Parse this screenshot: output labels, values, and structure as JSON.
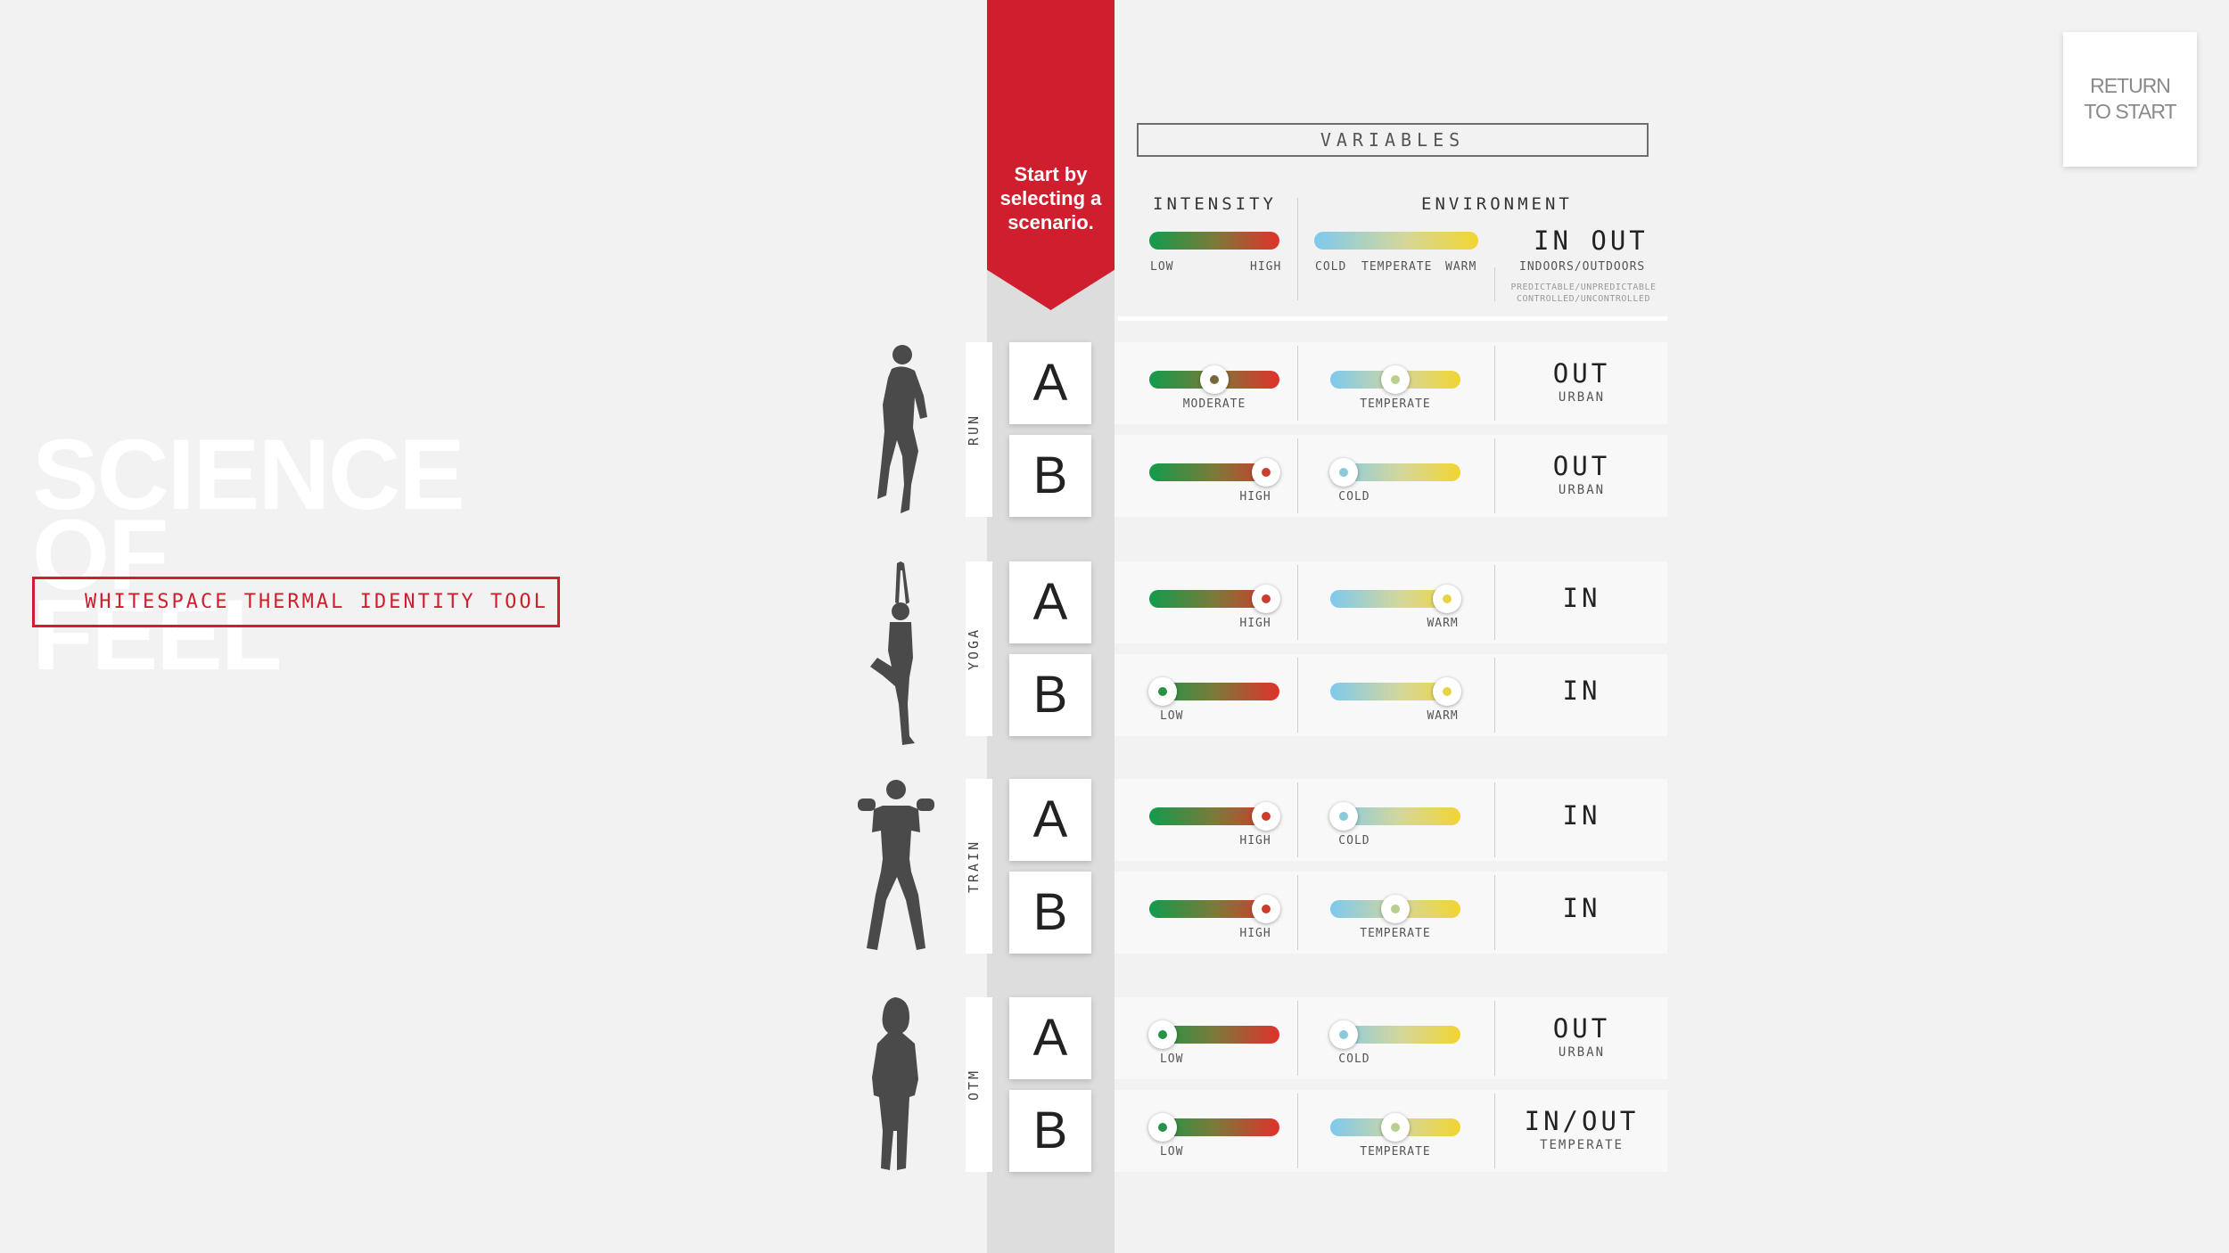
{
  "brand": {
    "title": "SCIENCE\nOF\nFEEL",
    "subtitle": "WHITESPACE THERMAL IDENTITY TOOL"
  },
  "return_button": "RETURN\nTO START",
  "ribbon": "Start by\nselecting a\nscenario.",
  "variables": {
    "title": "VARIABLES",
    "intensity": {
      "label": "INTENSITY",
      "low": "LOW",
      "high": "HIGH"
    },
    "environment": {
      "label": "ENVIRONMENT",
      "cold": "COLD",
      "temperate": "TEMPERATE",
      "warm": "WARM",
      "in_out": "IN OUT",
      "in_out_label": "INDOORS/OUTDOORS",
      "note1": "PREDICTABLE/UNPREDICTABLE",
      "note2": "CONTROLLED/UNCONTROLLED"
    }
  },
  "groups": [
    {
      "label": "RUN",
      "icon": "runner-icon",
      "rows": [
        {
          "letter": "A",
          "intensity": 0.5,
          "intensity_label": "MODERATE",
          "env": 0.5,
          "env_label": "TEMPERATE",
          "inout": "OUT",
          "inout_sub": "URBAN"
        },
        {
          "letter": "B",
          "intensity": 0.9,
          "intensity_label": "HIGH",
          "env": 0.1,
          "env_label": "COLD",
          "inout": "OUT",
          "inout_sub": "URBAN"
        }
      ]
    },
    {
      "label": "YOGA",
      "icon": "yoga-icon",
      "rows": [
        {
          "letter": "A",
          "intensity": 0.9,
          "intensity_label": "HIGH",
          "env": 0.9,
          "env_label": "WARM",
          "inout": "IN",
          "inout_sub": ""
        },
        {
          "letter": "B",
          "intensity": 0.1,
          "intensity_label": "LOW",
          "env": 0.9,
          "env_label": "WARM",
          "inout": "IN",
          "inout_sub": ""
        }
      ]
    },
    {
      "label": "TRAIN",
      "icon": "weightlifter-icon",
      "rows": [
        {
          "letter": "A",
          "intensity": 0.9,
          "intensity_label": "HIGH",
          "env": 0.1,
          "env_label": "COLD",
          "inout": "IN",
          "inout_sub": ""
        },
        {
          "letter": "B",
          "intensity": 0.9,
          "intensity_label": "HIGH",
          "env": 0.5,
          "env_label": "TEMPERATE",
          "inout": "IN",
          "inout_sub": ""
        }
      ]
    },
    {
      "label": "OTM",
      "icon": "person-walking-icon",
      "rows": [
        {
          "letter": "A",
          "intensity": 0.1,
          "intensity_label": "LOW",
          "env": 0.1,
          "env_label": "COLD",
          "inout": "OUT",
          "inout_sub": "URBAN"
        },
        {
          "letter": "B",
          "intensity": 0.1,
          "intensity_label": "LOW",
          "env": 0.5,
          "env_label": "TEMPERATE",
          "inout": "IN/OUT",
          "inout_sub": "TEMPERATE"
        }
      ]
    }
  ],
  "colors": {
    "accent": "#cf1f2e",
    "intensity_low": "#129b4c",
    "intensity_high": "#e0322b",
    "env_cold": "#7ec9ee",
    "env_warm": "#f2d531"
  }
}
